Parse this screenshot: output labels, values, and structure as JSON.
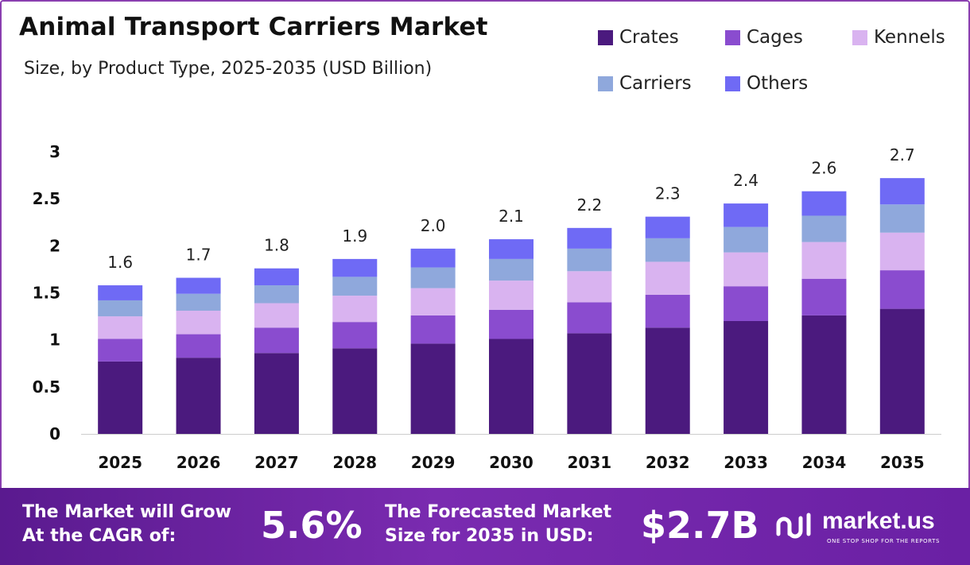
{
  "title": "Animal Transport Carriers Market",
  "subtitle": "Size, by Product Type, 2025-2035 (USD Billion)",
  "legend": [
    {
      "label": "Crates",
      "color": "#4b1a7e"
    },
    {
      "label": "Cages",
      "color": "#8a4ccf"
    },
    {
      "label": "Kennels",
      "color": "#d9b3f0"
    },
    {
      "label": "Carriers",
      "color": "#8fa8dc"
    },
    {
      "label": "Others",
      "color": "#6f6af5"
    }
  ],
  "chart_data": {
    "type": "bar",
    "stacked": true,
    "categories": [
      "2025",
      "2026",
      "2027",
      "2028",
      "2029",
      "2030",
      "2031",
      "2032",
      "2033",
      "2034",
      "2035"
    ],
    "series": [
      {
        "name": "Crates",
        "color": "#4b1a7e",
        "values": [
          0.77,
          0.81,
          0.86,
          0.91,
          0.96,
          1.01,
          1.07,
          1.13,
          1.2,
          1.26,
          1.33
        ]
      },
      {
        "name": "Cages",
        "color": "#8a4ccf",
        "values": [
          0.24,
          0.25,
          0.27,
          0.28,
          0.3,
          0.31,
          0.33,
          0.35,
          0.37,
          0.39,
          0.41
        ]
      },
      {
        "name": "Kennels",
        "color": "#d9b3f0",
        "values": [
          0.24,
          0.25,
          0.26,
          0.28,
          0.29,
          0.31,
          0.33,
          0.35,
          0.36,
          0.39,
          0.4
        ]
      },
      {
        "name": "Carriers",
        "color": "#8fa8dc",
        "values": [
          0.17,
          0.18,
          0.19,
          0.2,
          0.22,
          0.23,
          0.24,
          0.25,
          0.27,
          0.28,
          0.3
        ]
      },
      {
        "name": "Others",
        "color": "#6f6af5",
        "values": [
          0.16,
          0.17,
          0.18,
          0.19,
          0.2,
          0.21,
          0.22,
          0.23,
          0.25,
          0.26,
          0.28
        ]
      }
    ],
    "totals_labels": [
      "1.6",
      "1.7",
      "1.8",
      "1.9",
      "2.0",
      "2.1",
      "2.2",
      "2.3",
      "2.4",
      "2.6",
      "2.7"
    ],
    "ylim": [
      0,
      3
    ],
    "yticks": [
      "0",
      "0.5",
      "1",
      "1.5",
      "2",
      "2.5",
      "3"
    ],
    "grid": false,
    "legend_position": "top-right"
  },
  "footer": {
    "cagr_line1": "The Market will Grow",
    "cagr_line2": "At the CAGR of:",
    "cagr_value": "5.6%",
    "forecast_line1": "The Forecasted Market",
    "forecast_line2": "Size for 2035 in USD:",
    "forecast_value": "$2.7B",
    "brand_name": "market.us",
    "brand_tagline": "ONE STOP SHOP FOR THE REPORTS"
  }
}
